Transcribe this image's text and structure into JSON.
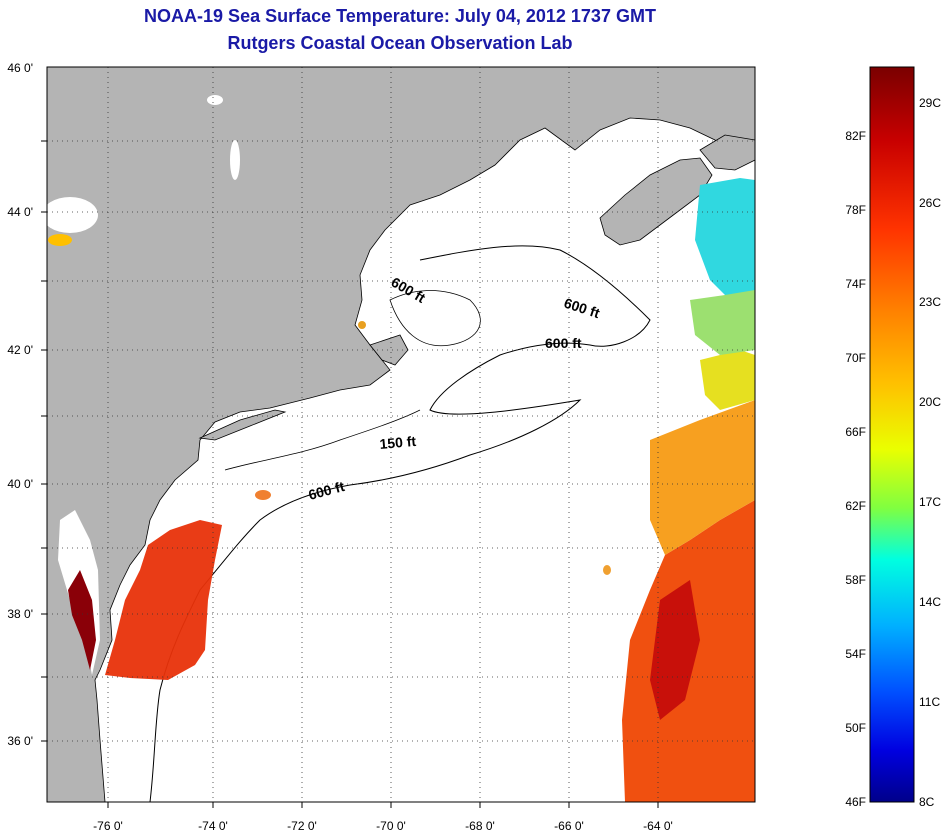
{
  "title": "NOAA-19 Sea Surface Temperature:  July 04, 2012 1737 GMT",
  "subtitle": "Rutgers Coastal Ocean Observation Lab",
  "map": {
    "lat_labels": [
      "46 0'",
      "44 0'",
      "42 0'",
      "40 0'",
      "38 0'",
      "36 0'"
    ],
    "lon_labels": [
      "-76 0'",
      "-74 0'",
      "-72 0'",
      "-70 0'",
      "-68 0'",
      "-66 0'",
      "-64 0'"
    ],
    "depth_labels": [
      "600 ft",
      "600 ft",
      "600 ft",
      "150 ft",
      "600 ft"
    ],
    "colors": {
      "land": "#b4b4b4",
      "ocean": "#ffffff",
      "grid": "#333333"
    }
  },
  "colorbar": {
    "fahrenheit_labels": [
      "82F",
      "78F",
      "74F",
      "70F",
      "66F",
      "62F",
      "58F",
      "54F",
      "50F",
      "46F"
    ],
    "celsius_labels": [
      "29C",
      "26C",
      "23C",
      "20C",
      "17C",
      "14C",
      "11C",
      "8C"
    ],
    "colors": [
      "#7a0000",
      "#c80000",
      "#ff3300",
      "#ff8000",
      "#ffc000",
      "#eaff00",
      "#80ff40",
      "#00ffe0",
      "#00b0ff",
      "#0050ff",
      "#0000e0",
      "#00008a"
    ]
  }
}
